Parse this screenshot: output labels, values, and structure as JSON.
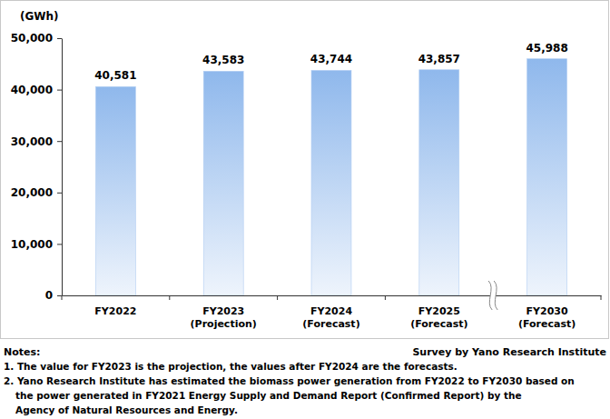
{
  "chart_data": {
    "type": "bar",
    "y_label": "(GWh)",
    "categories": [
      "FY2022",
      "FY2023\n(Projection)",
      "FY2024\n(Forecast)",
      "FY2025\n(Forecast)",
      "FY2030\n(Forecast)"
    ],
    "values": [
      40581,
      43583,
      43744,
      43857,
      45988
    ],
    "value_labels": [
      "40,581",
      "43,583",
      "43,744",
      "43,857",
      "45,988"
    ],
    "color": "#8fb8ec",
    "ylim": [
      0,
      50000
    ],
    "yticks": [
      0,
      {
        "value": 10000,
        "label": "10,000"
      },
      {
        "value": 20000,
        "label": "20,000"
      },
      {
        "value": 30000,
        "label": "30,000"
      },
      {
        "value": 40000,
        "label": "40,000"
      },
      {
        "value": 50000,
        "label": "50,000"
      }
    ],
    "grid": false,
    "data_labels": true,
    "notes_title": "Notes:",
    "notes": [
      "1. The value for FY2023 is the projection, the values after FY2024 are the forecasts.",
      "2. Yano Research Institute has estimated the biomass power generation from FY2022 to FY2030 based on",
      "the power generated in FY2021 Energy Supply and Demand Report (Confirmed Report) by the",
      "Agency of Natural Resources and Energy."
    ],
    "source": "Survey by Yano Research Institute"
  }
}
